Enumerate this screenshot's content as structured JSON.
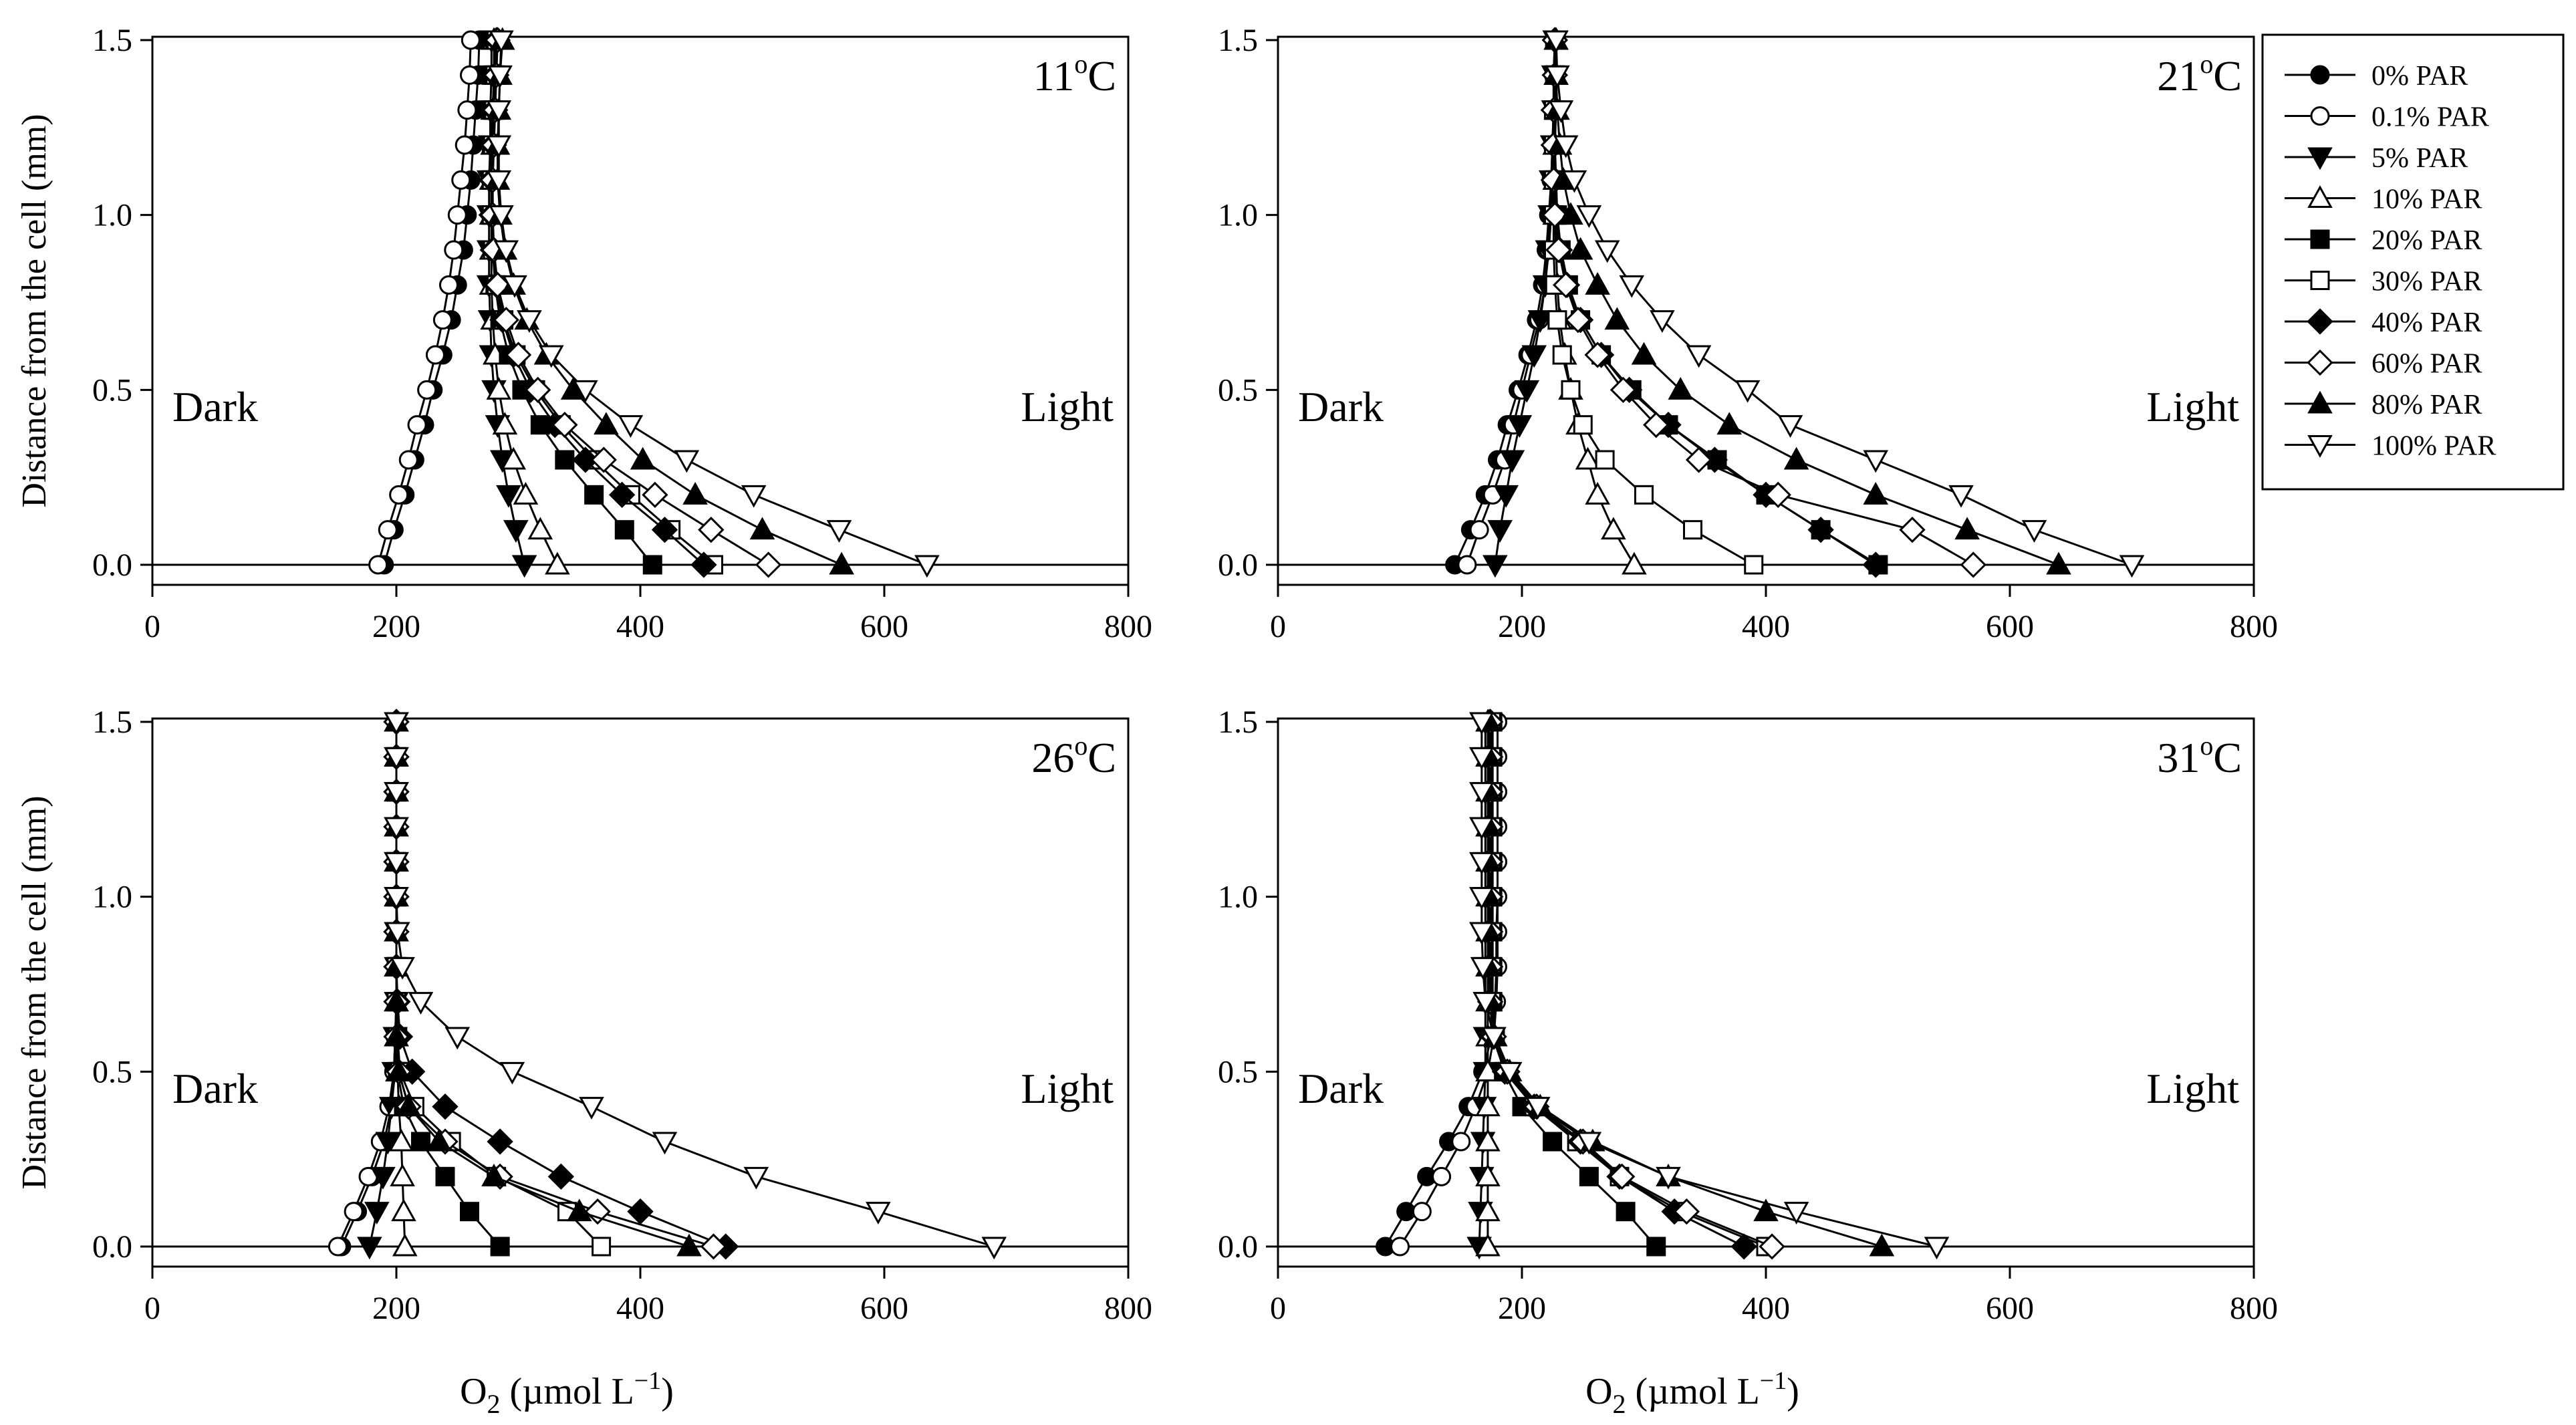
{
  "figure": {
    "ylabel": "Distance from the cell (mm)",
    "xlabel_main": "O",
    "xlabel_sub": "2",
    "xlabel_unit_pre": " (µmol L",
    "xlabel_unit_sup": "−1",
    "xlabel_unit_post": ")",
    "left_note": "Dark",
    "right_note": "Light"
  },
  "legend": {
    "position": "top-right",
    "entries": [
      {
        "label": "0% PAR",
        "marker": "circle",
        "filled": true
      },
      {
        "label": "0.1% PAR",
        "marker": "circle",
        "filled": false
      },
      {
        "label": "5% PAR",
        "marker": "triangle-down",
        "filled": true
      },
      {
        "label": "10% PAR",
        "marker": "triangle-up",
        "filled": false
      },
      {
        "label": "20% PAR",
        "marker": "square",
        "filled": true
      },
      {
        "label": "30% PAR",
        "marker": "square",
        "filled": false
      },
      {
        "label": "40% PAR",
        "marker": "diamond",
        "filled": true
      },
      {
        "label": "60% PAR",
        "marker": "diamond",
        "filled": false
      },
      {
        "label": "80% PAR",
        "marker": "triangle-up",
        "filled": true
      },
      {
        "label": "100% PAR",
        "marker": "triangle-down",
        "filled": false
      }
    ]
  },
  "chart_data": [
    {
      "type": "line",
      "title": "11°C",
      "title_num": "11",
      "xlabel": "O2 (µmol L−1)",
      "ylabel": "Distance from the cell (mm)",
      "xlim": [
        0,
        800
      ],
      "ylim": [
        0,
        1.5
      ],
      "xticks": [
        "0",
        "200",
        "400",
        "600",
        "800"
      ],
      "yticks": [
        "0.0",
        "0.5",
        "1.0",
        "1.5"
      ],
      "y": [
        0,
        0.1,
        0.2,
        0.3,
        0.4,
        0.5,
        0.6,
        0.7,
        0.8,
        0.9,
        1.0,
        1.1,
        1.2,
        1.3,
        1.4,
        1.5
      ],
      "series": [
        {
          "name": "0% PAR",
          "values": [
            190,
            198,
            207,
            215,
            223,
            230,
            238,
            245,
            250,
            255,
            258,
            261,
            263,
            265,
            267,
            268
          ]
        },
        {
          "name": "0.1% PAR",
          "values": [
            185,
            193,
            202,
            210,
            217,
            225,
            232,
            238,
            243,
            247,
            250,
            253,
            256,
            258,
            260,
            261
          ]
        },
        {
          "name": "5% PAR",
          "values": [
            305,
            298,
            292,
            287,
            283,
            280,
            278,
            277,
            276,
            276,
            276,
            276,
            277,
            277,
            278,
            278
          ]
        },
        {
          "name": "10% PAR",
          "values": [
            332,
            318,
            306,
            296,
            289,
            284,
            281,
            279,
            278,
            278,
            278,
            278,
            279,
            279,
            280,
            280
          ]
        },
        {
          "name": "20% PAR",
          "values": [
            410,
            387,
            362,
            338,
            318,
            303,
            292,
            285,
            281,
            279,
            278,
            278,
            278,
            279,
            280,
            281
          ]
        },
        {
          "name": "30% PAR",
          "values": [
            460,
            425,
            392,
            362,
            335,
            314,
            298,
            288,
            282,
            279,
            278,
            278,
            279,
            280,
            281,
            282
          ]
        },
        {
          "name": "40% PAR",
          "values": [
            452,
            420,
            385,
            355,
            330,
            310,
            296,
            287,
            282,
            279,
            278,
            278,
            279,
            280,
            281,
            282
          ]
        },
        {
          "name": "60% PAR",
          "values": [
            505,
            458,
            412,
            370,
            338,
            316,
            300,
            290,
            283,
            280,
            279,
            279,
            280,
            281,
            282,
            283
          ]
        },
        {
          "name": "80% PAR",
          "values": [
            565,
            500,
            445,
            402,
            372,
            345,
            323,
            307,
            296,
            289,
            285,
            283,
            283,
            284,
            285,
            287
          ]
        },
        {
          "name": "100% PAR",
          "values": [
            635,
            563,
            493,
            438,
            392,
            355,
            327,
            309,
            297,
            290,
            286,
            284,
            284,
            284,
            285,
            286
          ]
        }
      ]
    },
    {
      "type": "line",
      "title": "21°C",
      "title_num": "21",
      "xlabel": "O2 (µmol L−1)",
      "ylabel": "Distance from the cell (mm)",
      "xlim": [
        0,
        800
      ],
      "ylim": [
        0,
        1.5
      ],
      "xticks": [
        "0",
        "200",
        "400",
        "600",
        "800"
      ],
      "yticks": [
        "0.0",
        "0.5",
        "1.0",
        "1.5"
      ],
      "y": [
        0,
        0.1,
        0.2,
        0.3,
        0.4,
        0.5,
        0.6,
        0.7,
        0.8,
        0.9,
        1.0,
        1.1,
        1.2,
        1.3,
        1.4,
        1.5
      ],
      "series": [
        {
          "name": "0% PAR",
          "values": [
            145,
            158,
            170,
            180,
            188,
            197,
            205,
            212,
            217,
            220,
            222,
            224,
            225,
            226,
            226,
            227
          ]
        },
        {
          "name": "0.1% PAR",
          "values": [
            155,
            165,
            176,
            186,
            193,
            200,
            207,
            214,
            219,
            222,
            224,
            225,
            226,
            226,
            227,
            227
          ]
        },
        {
          "name": "5% PAR",
          "values": [
            178,
            182,
            187,
            192,
            198,
            204,
            210,
            215,
            219,
            221,
            223,
            224,
            225,
            226,
            226,
            227
          ]
        },
        {
          "name": "10% PAR",
          "values": [
            292,
            275,
            262,
            254,
            246,
            240,
            235,
            231,
            229,
            228,
            227,
            227,
            227,
            228,
            228,
            228
          ]
        },
        {
          "name": "20% PAR",
          "values": [
            492,
            445,
            400,
            360,
            320,
            290,
            265,
            248,
            238,
            232,
            229,
            228,
            227,
            227,
            227,
            227
          ]
        },
        {
          "name": "30% PAR",
          "values": [
            390,
            340,
            300,
            268,
            250,
            240,
            233,
            229,
            227,
            226,
            226,
            226,
            226,
            226,
            227,
            227
          ]
        },
        {
          "name": "40% PAR",
          "values": [
            490,
            445,
            400,
            358,
            320,
            288,
            265,
            248,
            237,
            231,
            228,
            227,
            226,
            226,
            227,
            227
          ]
        },
        {
          "name": "60% PAR",
          "values": [
            570,
            520,
            410,
            345,
            310,
            283,
            262,
            246,
            236,
            230,
            227,
            226,
            226,
            226,
            227,
            227
          ]
        },
        {
          "name": "80% PAR",
          "values": [
            640,
            565,
            490,
            425,
            370,
            330,
            300,
            278,
            262,
            248,
            240,
            234,
            231,
            229,
            228,
            228
          ]
        },
        {
          "name": "100% PAR",
          "values": [
            700,
            620,
            560,
            490,
            420,
            385,
            345,
            315,
            290,
            270,
            255,
            243,
            236,
            232,
            229,
            228
          ]
        }
      ]
    },
    {
      "type": "line",
      "title": "26°C",
      "title_num": "26",
      "xlabel": "O2 (µmol L−1)",
      "ylabel": "Distance from the cell (mm)",
      "xlim": [
        0,
        800
      ],
      "ylim": [
        0,
        1.5
      ],
      "xticks": [
        "0",
        "200",
        "400",
        "600",
        "800"
      ],
      "yticks": [
        "0.0",
        "0.5",
        "1.0",
        "1.5"
      ],
      "y": [
        0,
        0.1,
        0.2,
        0.3,
        0.4,
        0.5,
        0.6,
        0.7,
        0.8,
        0.9,
        1.0,
        1.1,
        1.2,
        1.3,
        1.4,
        1.5
      ],
      "series": [
        {
          "name": "0% PAR",
          "values": [
            155,
            168,
            180,
            190,
            196,
            199,
            200,
            200,
            200,
            200,
            200,
            200,
            200,
            200,
            200,
            200
          ]
        },
        {
          "name": "0.1% PAR",
          "values": [
            152,
            165,
            177,
            187,
            194,
            198,
            199,
            200,
            200,
            200,
            200,
            200,
            200,
            200,
            200,
            200
          ]
        },
        {
          "name": "5% PAR",
          "values": [
            178,
            184,
            189,
            193,
            196,
            198,
            199,
            200,
            200,
            200,
            200,
            200,
            200,
            200,
            200,
            200
          ]
        },
        {
          "name": "10% PAR",
          "values": [
            207,
            206,
            205,
            204,
            202,
            201,
            200,
            200,
            200,
            200,
            200,
            200,
            200,
            200,
            200,
            200
          ]
        },
        {
          "name": "20% PAR",
          "values": [
            285,
            260,
            240,
            220,
            206,
            201,
            200,
            200,
            200,
            200,
            200,
            200,
            200,
            200,
            200,
            200
          ]
        },
        {
          "name": "30% PAR",
          "values": [
            368,
            340,
            282,
            245,
            215,
            203,
            201,
            200,
            200,
            200,
            200,
            200,
            200,
            200,
            200,
            200
          ]
        },
        {
          "name": "40% PAR",
          "values": [
            470,
            400,
            335,
            285,
            240,
            213,
            203,
            201,
            200,
            200,
            200,
            200,
            200,
            200,
            200,
            200
          ]
        },
        {
          "name": "60% PAR",
          "values": [
            460,
            365,
            285,
            240,
            210,
            202,
            200,
            200,
            200,
            200,
            200,
            200,
            200,
            200,
            200,
            200
          ]
        },
        {
          "name": "80% PAR",
          "values": [
            440,
            350,
            280,
            235,
            210,
            202,
            200,
            200,
            200,
            200,
            200,
            200,
            200,
            200,
            200,
            200
          ]
        },
        {
          "name": "100% PAR",
          "values": [
            690,
            595,
            495,
            420,
            360,
            295,
            250,
            220,
            205,
            201,
            200,
            200,
            200,
            200,
            200,
            200
          ]
        }
      ]
    },
    {
      "type": "line",
      "title": "31°C",
      "title_num": "31",
      "xlabel": "O2 (µmol L−1)",
      "ylabel": "Distance from the cell (mm)",
      "xlim": [
        0,
        800
      ],
      "ylim": [
        0,
        1.5
      ],
      "xticks": [
        "0",
        "200",
        "400",
        "600",
        "800"
      ],
      "yticks": [
        "0.0",
        "0.5",
        "1.0",
        "1.5"
      ],
      "y": [
        0,
        0.1,
        0.2,
        0.3,
        0.4,
        0.5,
        0.6,
        0.7,
        0.8,
        0.9,
        1.0,
        1.1,
        1.2,
        1.3,
        1.4,
        1.5
      ],
      "series": [
        {
          "name": "0% PAR",
          "values": [
            88,
            105,
            122,
            140,
            156,
            168,
            175,
            178,
            179,
            179,
            180,
            180,
            180,
            180,
            180,
            180
          ]
        },
        {
          "name": "0.1% PAR",
          "values": [
            100,
            118,
            134,
            150,
            162,
            172,
            177,
            179,
            180,
            180,
            180,
            180,
            180,
            180,
            180,
            180
          ]
        },
        {
          "name": "5% PAR",
          "values": [
            165,
            166,
            167,
            168,
            169,
            170,
            170,
            170,
            170,
            170,
            170,
            170,
            170,
            170,
            170,
            170
          ]
        },
        {
          "name": "10% PAR",
          "values": [
            172,
            172,
            172,
            172,
            172,
            172,
            172,
            172,
            172,
            172,
            172,
            172,
            172,
            172,
            172,
            172
          ]
        },
        {
          "name": "20% PAR",
          "values": [
            310,
            285,
            255,
            225,
            200,
            185,
            178,
            176,
            176,
            176,
            176,
            176,
            176,
            176,
            176,
            176
          ]
        },
        {
          "name": "30% PAR",
          "values": [
            400,
            330,
            280,
            245,
            210,
            188,
            178,
            175,
            175,
            175,
            175,
            175,
            175,
            175,
            175,
            175
          ]
        },
        {
          "name": "40% PAR",
          "values": [
            382,
            325,
            280,
            248,
            210,
            186,
            176,
            174,
            174,
            174,
            174,
            174,
            174,
            174,
            174,
            174
          ]
        },
        {
          "name": "60% PAR",
          "values": [
            405,
            335,
            282,
            250,
            212,
            188,
            177,
            174,
            174,
            174,
            174,
            174,
            174,
            174,
            174,
            174
          ]
        },
        {
          "name": "80% PAR",
          "values": [
            495,
            400,
            320,
            258,
            215,
            190,
            178,
            174,
            173,
            173,
            173,
            173,
            173,
            173,
            173,
            173
          ]
        },
        {
          "name": "100% PAR",
          "values": [
            540,
            425,
            320,
            255,
            213,
            190,
            177,
            170,
            168,
            167,
            167,
            167,
            167,
            167,
            167,
            167
          ]
        }
      ]
    }
  ]
}
